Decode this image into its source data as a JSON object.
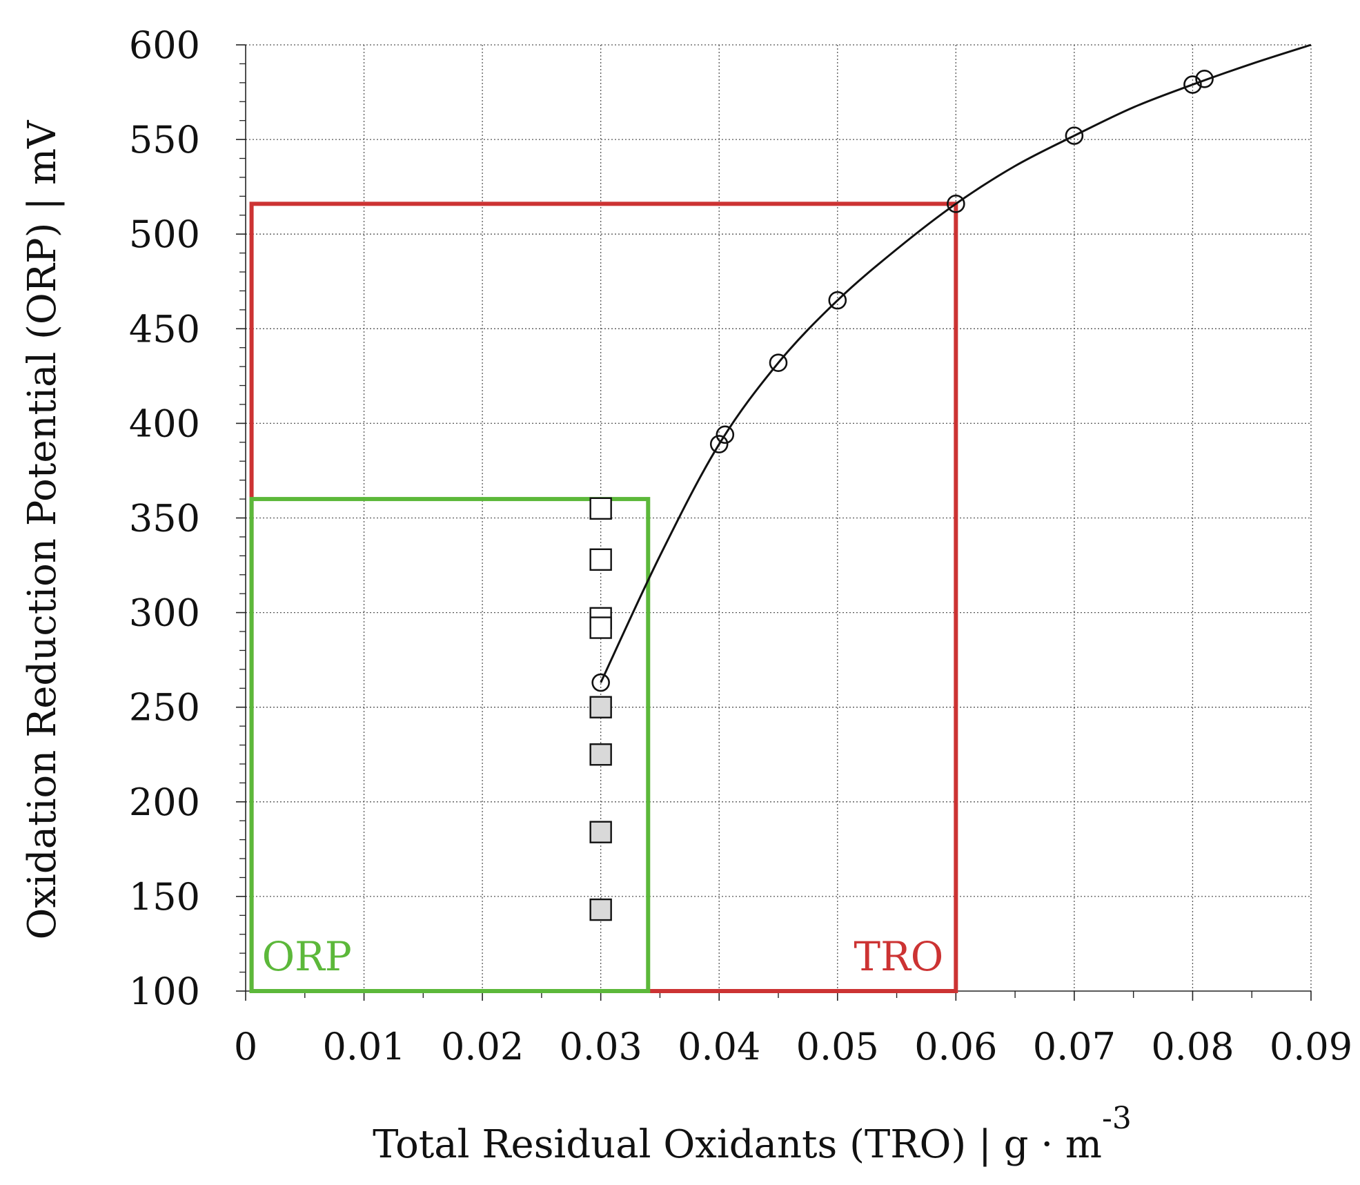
{
  "chart_data": {
    "type": "scatter",
    "title": "",
    "xlabel": "Total Residual Oxidants (TRO)  |  g · m",
    "xlabel_superscript": "-3",
    "ylabel": "Oxidation Reduction Potential (ORP)  |  mV",
    "xlim": [
      0,
      0.09
    ],
    "ylim": [
      100,
      600
    ],
    "x_ticks": [
      "0",
      "0.01",
      "0.02",
      "0.03",
      "0.04",
      "0.05",
      "0.06",
      "0.07",
      "0.08",
      "0.09"
    ],
    "y_ticks": [
      "100",
      "150",
      "200",
      "250",
      "300",
      "350",
      "400",
      "450",
      "500",
      "550",
      "600"
    ],
    "grid": true,
    "series": [
      {
        "marker": "open-circle",
        "points": [
          [
            0.03,
            263
          ],
          [
            0.04,
            389
          ],
          [
            0.0405,
            394
          ],
          [
            0.045,
            432
          ],
          [
            0.05,
            465
          ],
          [
            0.06,
            516
          ],
          [
            0.07,
            552
          ],
          [
            0.08,
            579
          ],
          [
            0.081,
            582
          ]
        ]
      },
      {
        "marker": "open-square",
        "points": [
          [
            0.03,
            355
          ],
          [
            0.03,
            328
          ],
          [
            0.03,
            297
          ],
          [
            0.03,
            292
          ]
        ]
      },
      {
        "marker": "gray-square",
        "points": [
          [
            0.03,
            250
          ],
          [
            0.03,
            225
          ],
          [
            0.03,
            184
          ],
          [
            0.03,
            143
          ]
        ]
      }
    ],
    "fit_curve": [
      [
        0.03,
        263
      ],
      [
        0.035,
        330
      ],
      [
        0.04,
        389
      ],
      [
        0.045,
        432
      ],
      [
        0.05,
        465
      ],
      [
        0.055,
        492
      ],
      [
        0.06,
        516
      ],
      [
        0.065,
        536
      ],
      [
        0.07,
        552
      ],
      [
        0.075,
        567
      ],
      [
        0.08,
        579
      ],
      [
        0.085,
        590
      ],
      [
        0.09,
        600
      ]
    ],
    "regions": [
      {
        "label": "TRO",
        "color": "#cc3333",
        "x_range": [
          0.0005,
          0.06
        ],
        "y_range": [
          100,
          516
        ]
      },
      {
        "label": "ORP",
        "color": "#5cb83a",
        "x_range": [
          0.0005,
          0.034
        ],
        "y_range": [
          100,
          360
        ]
      }
    ]
  }
}
